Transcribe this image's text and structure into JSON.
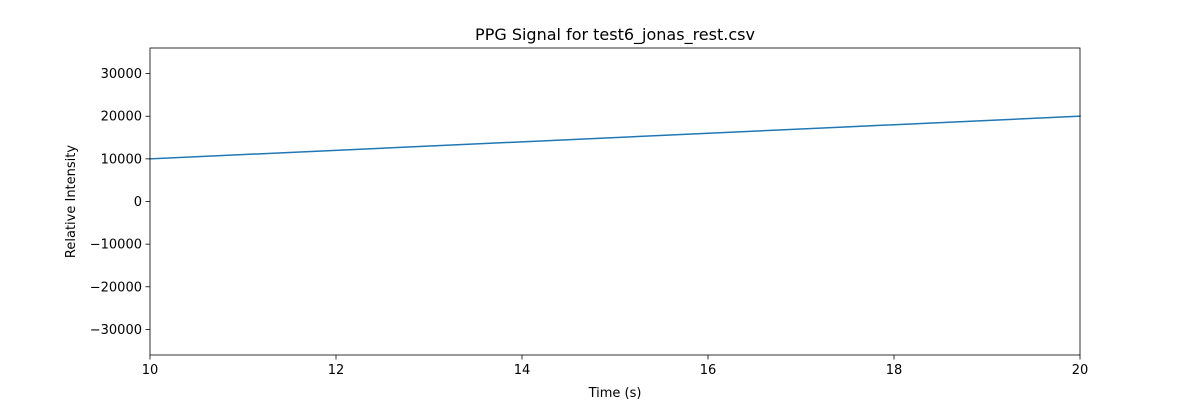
{
  "chart_data": {
    "type": "line",
    "title": "PPG Signal for test6_jonas_rest.csv",
    "xlabel": "Time (s)",
    "ylabel": "Relative Intensity",
    "xlim": [
      10,
      20
    ],
    "ylim": [
      -36000,
      36000
    ],
    "x_ticks": [
      10,
      12,
      14,
      16,
      18,
      20
    ],
    "y_ticks": [
      -30000,
      -20000,
      -10000,
      0,
      10000,
      20000,
      30000
    ],
    "x_tick_labels": [
      "10",
      "12",
      "14",
      "16",
      "18",
      "20"
    ],
    "y_tick_labels": [
      "−30000",
      "−20000",
      "−10000",
      "0",
      "10000",
      "20000",
      "30000"
    ],
    "grid": false,
    "series": [
      {
        "color": "#1f77b4",
        "x": [
          10,
          20
        ],
        "y": [
          10000,
          20000
        ]
      }
    ]
  }
}
